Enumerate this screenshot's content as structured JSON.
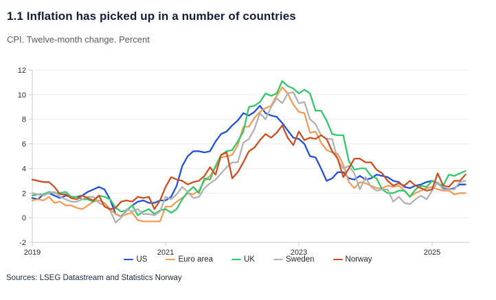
{
  "header": {
    "title": "1.1 Inflation has picked up in a number of countries",
    "subtitle": "CPI. Twelve-month change. Percent"
  },
  "footer": {
    "sources": "Sources: LSEG Datastream and Statistics Norway"
  },
  "style": {
    "grid_color": "#ececec",
    "axis_color": "#c8c8c8",
    "tick_text_color": "#2c2c2e"
  },
  "chart_data": {
    "type": "line",
    "title": "1.1 Inflation has picked up in a number of countries",
    "subtitle": "CPI. Twelve-month change. Percent",
    "xlabel": "",
    "ylabel": "Percent",
    "frequency": "monthly",
    "x_start": "2019-01",
    "x_end": "2025-07",
    "ylim": [
      -2,
      12
    ],
    "y_ticks": [
      12,
      10,
      8,
      6,
      4,
      2,
      0,
      -2
    ],
    "x_ticks": [
      {
        "label": "2019",
        "month_index": 0
      },
      {
        "label": "2021",
        "month_index": 24
      },
      {
        "label": "2023",
        "month_index": 48
      },
      {
        "label": "2025",
        "month_index": 72
      }
    ],
    "grid": "horizontal",
    "legend_position": "bottom",
    "series": [
      {
        "name": "US",
        "color": "#2050dd",
        "values": [
          1.6,
          1.5,
          1.9,
          2.0,
          1.8,
          1.6,
          1.8,
          1.7,
          1.7,
          1.8,
          2.1,
          2.3,
          2.5,
          2.3,
          1.5,
          0.3,
          0.1,
          0.6,
          1.0,
          1.3,
          1.4,
          1.2,
          1.2,
          1.4,
          1.4,
          1.7,
          2.6,
          4.2,
          5.0,
          5.4,
          5.4,
          5.3,
          5.4,
          6.2,
          6.8,
          7.0,
          7.5,
          7.9,
          8.5,
          8.3,
          8.6,
          9.1,
          8.5,
          8.3,
          8.2,
          7.7,
          7.1,
          6.5,
          6.4,
          6.0,
          5.0,
          4.9,
          4.0,
          3.0,
          3.2,
          3.7,
          3.7,
          3.2,
          3.1,
          3.4,
          3.1,
          3.2,
          3.5,
          3.4,
          3.3,
          3.0,
          2.9,
          2.5,
          2.4,
          2.6,
          2.7,
          2.9,
          3.0,
          2.8,
          2.4,
          2.3,
          2.4,
          2.7,
          2.7
        ]
      },
      {
        "name": "Euro area",
        "color": "#f59b57",
        "values": [
          1.4,
          1.5,
          1.4,
          1.7,
          1.2,
          1.3,
          1.0,
          1.0,
          0.8,
          0.7,
          1.0,
          1.3,
          1.4,
          1.2,
          0.7,
          0.3,
          0.1,
          0.3,
          0.4,
          -0.2,
          -0.3,
          -0.3,
          -0.3,
          -0.3,
          0.9,
          0.9,
          1.3,
          1.6,
          2.0,
          1.9,
          2.2,
          3.0,
          3.4,
          4.1,
          4.9,
          5.0,
          5.1,
          5.9,
          7.4,
          7.4,
          8.1,
          8.6,
          8.9,
          9.1,
          9.9,
          10.6,
          10.1,
          9.2,
          8.6,
          8.5,
          6.9,
          7.0,
          6.1,
          5.5,
          5.3,
          5.2,
          4.3,
          2.9,
          2.4,
          2.9,
          2.8,
          2.6,
          2.4,
          2.4,
          2.6,
          2.5,
          2.6,
          2.2,
          1.7,
          2.0,
          2.2,
          2.4,
          2.5,
          2.3,
          2.2,
          2.2,
          1.9,
          2.0,
          2.0
        ]
      },
      {
        "name": "UK",
        "color": "#31c966",
        "values": [
          1.8,
          1.9,
          1.9,
          2.1,
          2.0,
          2.0,
          2.1,
          1.7,
          1.7,
          1.5,
          1.5,
          1.3,
          1.8,
          1.7,
          1.5,
          0.8,
          0.5,
          0.6,
          1.0,
          0.2,
          0.5,
          0.7,
          0.3,
          0.6,
          0.7,
          0.4,
          0.7,
          1.5,
          2.1,
          2.5,
          2.0,
          3.2,
          3.1,
          4.2,
          5.1,
          5.4,
          5.5,
          6.2,
          7.0,
          9.0,
          9.1,
          9.4,
          10.1,
          9.9,
          10.1,
          11.1,
          10.7,
          10.5,
          10.1,
          10.4,
          10.1,
          8.7,
          8.7,
          7.9,
          6.8,
          6.7,
          6.7,
          4.6,
          3.9,
          4.0,
          4.0,
          3.4,
          3.2,
          2.3,
          2.0,
          2.0,
          2.2,
          2.2,
          1.7,
          2.3,
          2.6,
          2.5,
          3.0,
          2.8,
          2.6,
          3.5,
          3.4,
          3.6,
          3.8
        ]
      },
      {
        "name": "Sweden",
        "color": "#b1b1b1",
        "values": [
          2.0,
          1.9,
          1.8,
          2.0,
          2.1,
          1.7,
          1.5,
          1.3,
          1.3,
          1.5,
          1.7,
          1.7,
          1.2,
          1.0,
          0.6,
          -0.4,
          0.0,
          0.7,
          0.5,
          0.7,
          0.3,
          0.3,
          0.2,
          0.5,
          1.7,
          1.5,
          1.9,
          2.5,
          2.1,
          1.6,
          1.7,
          2.4,
          2.8,
          3.1,
          3.6,
          4.1,
          4.5,
          4.5,
          6.1,
          6.4,
          7.2,
          8.5,
          8.0,
          9.0,
          9.7,
          9.3,
          10.1,
          10.2,
          9.3,
          9.4,
          8.0,
          7.6,
          6.7,
          6.4,
          6.4,
          4.7,
          4.0,
          4.2,
          3.6,
          2.3,
          3.3,
          2.5,
          2.2,
          2.3,
          2.3,
          1.3,
          1.7,
          1.2,
          1.1,
          1.5,
          1.8,
          1.5,
          2.2,
          2.9,
          2.3,
          2.3,
          2.3,
          2.9,
          3.0
        ]
      },
      {
        "name": "Norway",
        "color": "#cf4e1f",
        "values": [
          3.1,
          3.0,
          2.9,
          2.9,
          2.5,
          1.9,
          1.9,
          1.6,
          1.5,
          1.8,
          1.6,
          1.4,
          1.8,
          0.9,
          0.7,
          0.8,
          1.3,
          1.4,
          1.3,
          1.7,
          1.6,
          1.7,
          0.7,
          1.4,
          2.5,
          3.3,
          3.1,
          3.0,
          2.7,
          2.9,
          3.0,
          3.4,
          4.1,
          3.5,
          5.1,
          5.3,
          3.2,
          3.7,
          4.5,
          5.4,
          5.7,
          6.3,
          6.8,
          6.5,
          6.9,
          7.5,
          6.5,
          5.9,
          7.0,
          6.3,
          6.5,
          6.4,
          6.7,
          6.4,
          5.4,
          4.8,
          3.3,
          4.0,
          4.8,
          4.8,
          4.5,
          4.5,
          3.9,
          3.6,
          3.0,
          2.6,
          2.8,
          2.6,
          3.0,
          2.6,
          2.4,
          2.2,
          2.3,
          3.6,
          2.6,
          2.5,
          3.0,
          3.0,
          3.5
        ]
      }
    ]
  }
}
